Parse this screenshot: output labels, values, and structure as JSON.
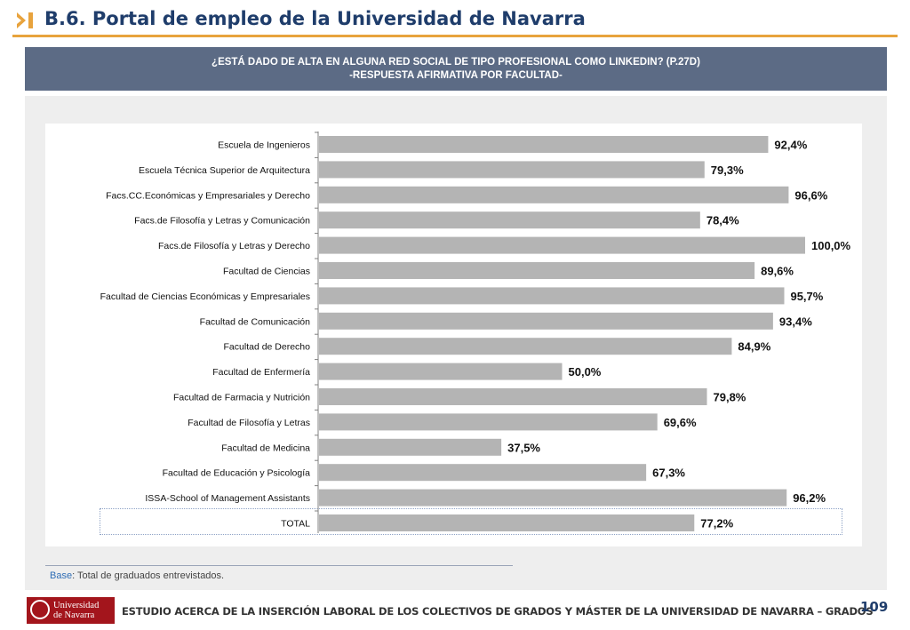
{
  "header": {
    "title": "B.6. Portal de empleo de la Universidad de Navarra",
    "icon": "chevron-bar-icon",
    "accent_color": "#e8a33d",
    "title_color": "#1f3d6b"
  },
  "chart_banner": {
    "line1": "¿ESTÁ DADO DE ALTA EN ALGUNA RED SOCIAL DE TIPO PROFESIONAL COMO LINKEDIN? (P.27D)",
    "line2": "-RESPUESTA AFIRMATIVA POR FACULTAD-",
    "background": "#5c6b85"
  },
  "chart_data": {
    "type": "bar",
    "orientation": "horizontal",
    "categories": [
      "Escuela de Ingenieros",
      "Escuela Técnica Superior de Arquitectura",
      "Facs.CC.Económicas y Empresariales y Derecho",
      "Facs.de Filosofía y Letras y Comunicación",
      "Facs.de Filosofía y Letras y Derecho",
      "Facultad de Ciencias",
      "Facultad de Ciencias Económicas y Empresariales",
      "Facultad de Comunicación",
      "Facultad de Derecho",
      "Facultad de Enfermería",
      "Facultad de Farmacia y Nutrición",
      "Facultad de Filosofía y Letras",
      "Facultad de Medicina",
      "Facultad de Educación y Psicología",
      "ISSA-School of Management Assistants",
      "TOTAL"
    ],
    "values": [
      92.4,
      79.3,
      96.6,
      78.4,
      100.0,
      89.6,
      95.7,
      93.4,
      84.9,
      50.0,
      79.8,
      69.6,
      37.5,
      67.3,
      96.2,
      77.2
    ],
    "value_labels": [
      "92,4%",
      "79,3%",
      "96,6%",
      "78,4%",
      "100,0%",
      "89,6%",
      "95,7%",
      "93,4%",
      "84,9%",
      "50,0%",
      "79,8%",
      "69,6%",
      "37,5%",
      "67,3%",
      "96,2%",
      "77,2%"
    ],
    "xlim": [
      0,
      100
    ],
    "bar_color": "#b4b4b4",
    "highlighted_category": "TOTAL",
    "grid": false,
    "legend": "none"
  },
  "base_note": {
    "label": "Base",
    "text": ": Total de graduados entrevistados."
  },
  "footer": {
    "logo_line1": "Universidad",
    "logo_line2": "de Navarra",
    "logo_color": "#a3151c",
    "text": "ESTUDIO ACERCA DE LA INSERCIÓN LABORAL DE LOS COLECTIVOS DE GRADOS Y MÁSTER DE LA UNIVERSIDAD DE NAVARRA – GRADOS",
    "page_number": "109"
  }
}
